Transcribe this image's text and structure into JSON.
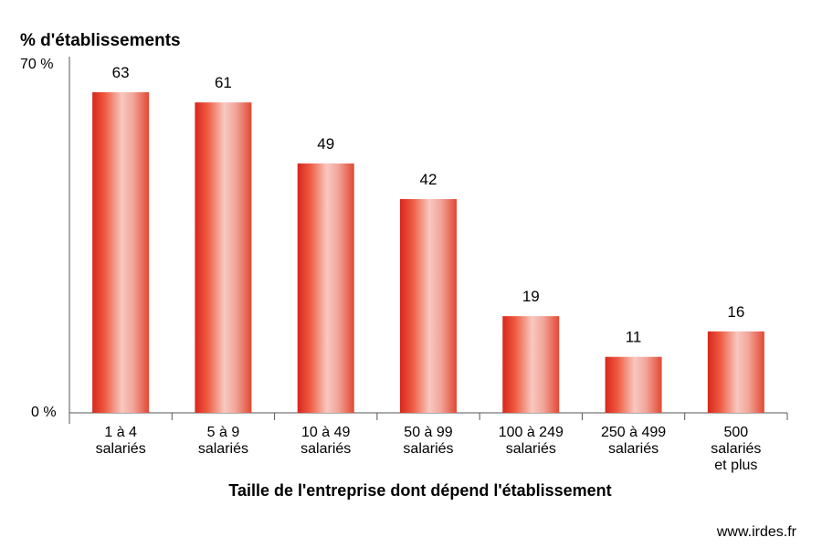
{
  "chart_data": {
    "type": "bar",
    "ylabel": "% d'établissements",
    "xlabel": "Taille de l'entreprise dont dépend l'établissement",
    "ylim": [
      0,
      70
    ],
    "y_ticks": [
      "0 %",
      "70 %"
    ],
    "categories": [
      [
        "1 à 4",
        "salariés"
      ],
      [
        "5 à 9",
        "salariés"
      ],
      [
        "10 à 49",
        "salariés"
      ],
      [
        "50 à 99",
        "salariés"
      ],
      [
        "100 à 249",
        "salariés"
      ],
      [
        "250 à 499",
        "salariés"
      ],
      [
        "500",
        "salariés",
        "et plus"
      ]
    ],
    "values": [
      63,
      61,
      49,
      42,
      19,
      11,
      16
    ],
    "data_labels": [
      "63",
      "61",
      "49",
      "42",
      "19",
      "11",
      "16"
    ],
    "bar_color": "#e8483a",
    "highlight_color": "#f7cfc8"
  },
  "source": "www.irdes.fr"
}
